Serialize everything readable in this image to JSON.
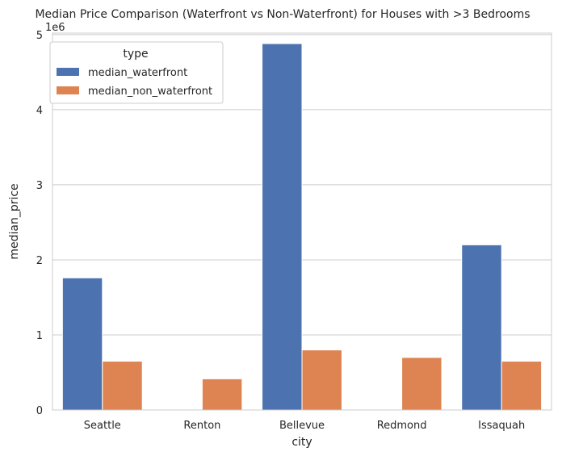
{
  "chart_data": {
    "type": "bar",
    "title": "Median Price Comparison (Waterfront vs Non-Waterfront) for Houses with >3 Bedrooms",
    "xlabel": "city",
    "ylabel": "median_price",
    "y_offset_label": "1e6",
    "categories": [
      "Seattle",
      "Renton",
      "Bellevue",
      "Redmond",
      "Issaquah"
    ],
    "series": [
      {
        "name": "median_waterfront",
        "color": "#4c72b0",
        "values": [
          1760000,
          0,
          4880000,
          0,
          2200000
        ]
      },
      {
        "name": "median_non_waterfront",
        "color": "#dd8452",
        "values": [
          650000,
          415000,
          800000,
          700000,
          650000
        ]
      }
    ],
    "ylim": [
      0,
      5020000
    ],
    "yticks": [
      0,
      1000000,
      2000000,
      3000000,
      4000000,
      5000000
    ],
    "ytick_labels": [
      "0",
      "1",
      "2",
      "3",
      "4",
      "5"
    ],
    "grid": true,
    "legend": {
      "title": "type",
      "placement": "top-left"
    }
  }
}
